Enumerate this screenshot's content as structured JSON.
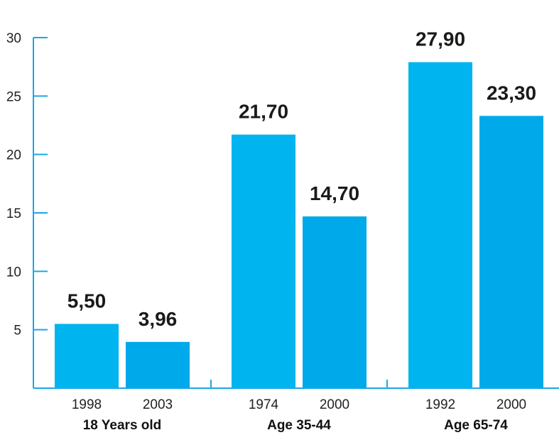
{
  "chart_data": {
    "type": "bar",
    "ylim": [
      0,
      30
    ],
    "y_ticks": [
      5,
      10,
      15,
      20,
      25,
      30
    ],
    "grid": false,
    "groups": [
      {
        "label": "18 Years old",
        "bars": [
          {
            "year": "1998",
            "value": 5.5,
            "value_label": "5,50"
          },
          {
            "year": "2003",
            "value": 3.96,
            "value_label": "3,96"
          }
        ]
      },
      {
        "label": "Age 35-44",
        "bars": [
          {
            "year": "1974",
            "value": 21.7,
            "value_label": "21,70"
          },
          {
            "year": "2000",
            "value": 14.7,
            "value_label": "14,70"
          }
        ]
      },
      {
        "label": "Age 65-74",
        "bars": [
          {
            "year": "1992",
            "value": 27.9,
            "value_label": "27,90"
          },
          {
            "year": "2000",
            "value": 23.3,
            "value_label": "23,30"
          }
        ]
      }
    ],
    "colors": {
      "bar_first": "#00b4ef",
      "bar_second": "#00a9ea",
      "axis": "#1aa7e6"
    }
  }
}
